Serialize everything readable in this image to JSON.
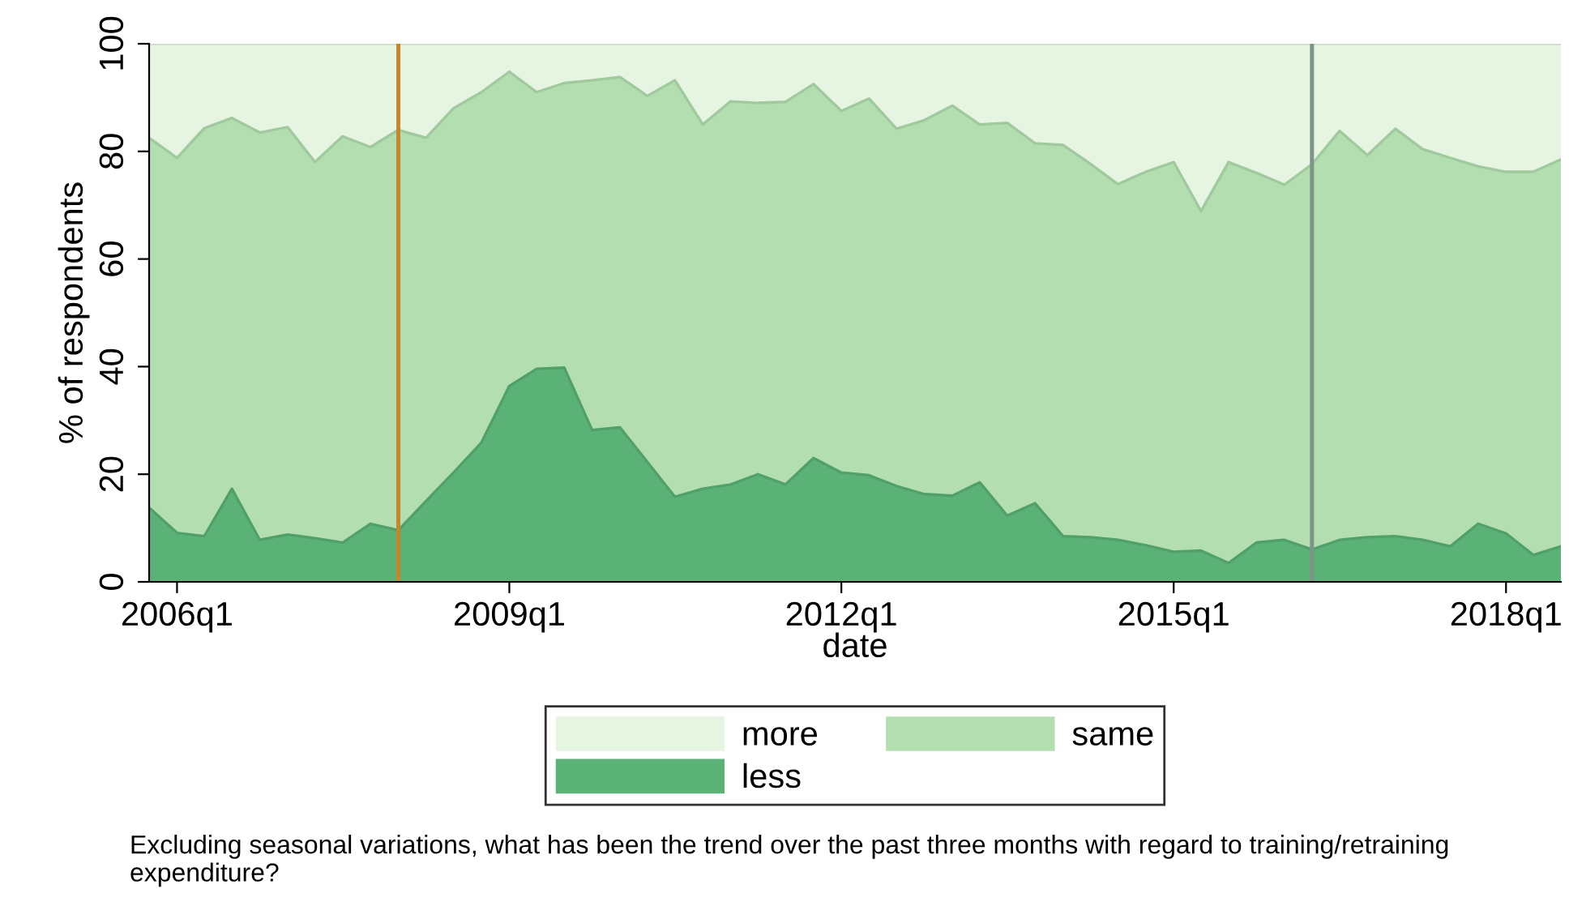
{
  "chart_data": {
    "type": "area",
    "stacked": true,
    "xlabel": "date",
    "ylabel": "% of respondents",
    "x": [
      "2005-10",
      "2006-01",
      "2006-04",
      "2006-07",
      "2006-10",
      "2007-01",
      "2007-04",
      "2007-07",
      "2007-10",
      "2008-01",
      "2008-04",
      "2008-07",
      "2008-10",
      "2009-01",
      "2009-04",
      "2009-07",
      "2009-10",
      "2010-01",
      "2010-04",
      "2010-07",
      "2010-10",
      "2011-01",
      "2011-04",
      "2011-07",
      "2011-10",
      "2012-01",
      "2012-04",
      "2012-07",
      "2012-10",
      "2013-01",
      "2013-04",
      "2013-07",
      "2013-10",
      "2014-01",
      "2014-04",
      "2014-07",
      "2014-10",
      "2015-01",
      "2015-04",
      "2015-07",
      "2015-10",
      "2016-01",
      "2016-04",
      "2016-07",
      "2016-10",
      "2017-01",
      "2017-04",
      "2017-07",
      "2017-10",
      "2018-01",
      "2018-04",
      "2018-07"
    ],
    "series": [
      {
        "name": "less",
        "color": "#5ab276",
        "values": [
          13.8,
          9.1,
          8.5,
          17.3,
          7.8,
          8.8,
          8.1,
          7.3,
          10.8,
          9.6,
          15.0,
          20.3,
          25.9,
          36.4,
          39.6,
          39.8,
          28.2,
          28.7,
          22.3,
          15.8,
          17.3,
          18.1,
          20.0,
          18.1,
          23.0,
          20.3,
          19.8,
          17.8,
          16.3,
          16.0,
          18.5,
          12.3,
          14.6,
          8.5,
          8.3,
          7.8,
          6.8,
          5.6,
          5.8,
          3.5,
          7.3,
          7.8,
          6.0,
          7.8,
          8.3,
          8.5,
          7.8,
          6.6,
          10.8,
          9.0,
          5.0,
          6.6
        ]
      },
      {
        "name": "same",
        "color": "#b3dfb0",
        "values": [
          68.7,
          69.7,
          75.8,
          68.9,
          75.7,
          75.7,
          69.9,
          75.5,
          70.0,
          74.4,
          67.5,
          67.7,
          65.1,
          58.4,
          51.4,
          52.9,
          65.0,
          65.1,
          68.0,
          77.4,
          67.7,
          71.2,
          69.0,
          71.1,
          69.5,
          67.2,
          70.0,
          66.4,
          69.5,
          72.5,
          66.5,
          73.0,
          66.9,
          72.7,
          69.4,
          66.1,
          69.4,
          72.4,
          63.1,
          74.5,
          68.7,
          66.0,
          71.6,
          76.0,
          71.0,
          75.7,
          72.6,
          72.2,
          66.4,
          67.2,
          71.2,
          71.9
        ]
      },
      {
        "name": "more",
        "color": "#e6f4e2",
        "values": [
          17.5,
          21.2,
          15.7,
          13.8,
          16.5,
          15.5,
          22.0,
          17.2,
          19.2,
          16.0,
          17.5,
          12.0,
          9.0,
          5.2,
          9.0,
          7.3,
          6.8,
          6.2,
          9.7,
          6.8,
          15.0,
          10.7,
          11.0,
          10.8,
          7.5,
          12.5,
          10.2,
          15.8,
          14.2,
          11.5,
          15.0,
          14.7,
          18.5,
          18.8,
          22.3,
          26.1,
          23.8,
          22.0,
          31.1,
          22.0,
          24.0,
          26.2,
          22.4,
          16.2,
          20.7,
          15.8,
          19.6,
          21.2,
          22.8,
          23.8,
          23.8,
          21.5
        ]
      }
    ],
    "xlim": [
      "2005-10",
      "2018-07"
    ],
    "xticks": [
      {
        "value": "2006-01",
        "label": "2006q1"
      },
      {
        "value": "2009-01",
        "label": "2009q1"
      },
      {
        "value": "2012-01",
        "label": "2012q1"
      },
      {
        "value": "2015-01",
        "label": "2015q1"
      },
      {
        "value": "2018-01",
        "label": "2018q1"
      }
    ],
    "ylim": [
      0,
      100
    ],
    "yticks": [
      0,
      20,
      40,
      60,
      80,
      100
    ],
    "ref_lines": [
      {
        "axis": "x",
        "value": "2008-01",
        "color": "#c8862a"
      },
      {
        "axis": "x",
        "value": "2016-04",
        "color": "#7f9488"
      }
    ],
    "legend": "bottom",
    "grid": false,
    "annotations": [
      "Excluding seasonal variations, what has been the trend over the past three months with regard to training/retraining expenditure?"
    ]
  }
}
